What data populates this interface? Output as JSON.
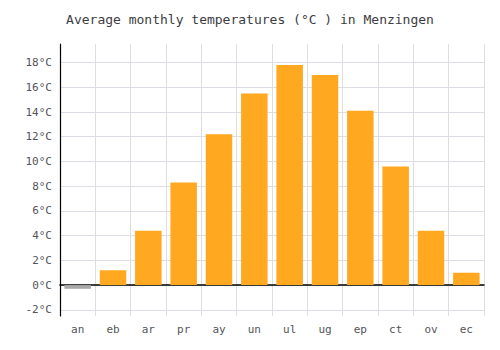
{
  "chart_data": {
    "type": "bar",
    "title": "Average monthly temperatures (°C ) in Menzingen",
    "categories": [
      "an",
      "eb",
      "ar",
      "pr",
      "ay",
      "un",
      "ul",
      "ug",
      "ep",
      "ct",
      "ov",
      "ec"
    ],
    "values": [
      -0.3,
      1.2,
      4.4,
      8.3,
      12.2,
      15.5,
      17.8,
      17.0,
      14.1,
      9.6,
      4.4,
      1.0
    ],
    "colors": [
      "#AAAAAA",
      "#FFA820",
      "#FFA820",
      "#FFA820",
      "#FFA820",
      "#FFA820",
      "#FFA820",
      "#FFA820",
      "#FFA820",
      "#FFA820",
      "#FFA820",
      "#FFA820"
    ],
    "ylim": [
      -2.5,
      19.5
    ],
    "yticks": [
      {
        "value": -2,
        "label": "-2°C"
      },
      {
        "value": 0,
        "label": "0°C"
      },
      {
        "value": 2,
        "label": "2°C"
      },
      {
        "value": 4,
        "label": "4°C"
      },
      {
        "value": 6,
        "label": "6°C"
      },
      {
        "value": 8,
        "label": "8°C"
      },
      {
        "value": 10,
        "label": "10°C"
      },
      {
        "value": 12,
        "label": "12°C"
      },
      {
        "value": 14,
        "label": "14°C"
      },
      {
        "value": 16,
        "label": "16°C"
      },
      {
        "value": 18,
        "label": "18°C"
      }
    ],
    "grid": true
  }
}
